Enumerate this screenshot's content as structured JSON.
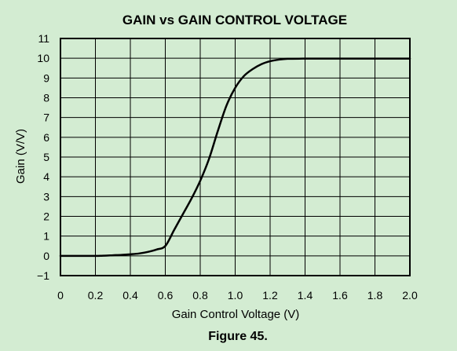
{
  "chart_data": {
    "type": "line",
    "title": "GAIN vs GAIN CONTROL VOLTAGE",
    "xlabel": "Gain Control Voltage (V)",
    "ylabel": "Gain (V/V)",
    "xlim": [
      0,
      2.0
    ],
    "ylim": [
      -1,
      11
    ],
    "x_ticks": [
      "0",
      "0.2",
      "0.4",
      "0.6",
      "0.8",
      "1.0",
      "1.2",
      "1.4",
      "1.6",
      "1.8",
      "2.0"
    ],
    "y_ticks": [
      "−1",
      "0",
      "1",
      "2",
      "3",
      "4",
      "5",
      "6",
      "7",
      "8",
      "9",
      "10",
      "11"
    ],
    "grid": true,
    "series": [
      {
        "x": [
          0,
          0.1,
          0.2,
          0.25,
          0.3,
          0.35,
          0.4,
          0.45,
          0.5,
          0.55,
          0.6,
          0.65,
          0.7,
          0.75,
          0.8,
          0.85,
          0.9,
          0.95,
          1.0,
          1.05,
          1.1,
          1.15,
          1.2,
          1.25,
          1.3,
          1.4,
          1.6,
          1.8,
          2.0
        ],
        "y": [
          0,
          0,
          0,
          0.01,
          0.03,
          0.05,
          0.08,
          0.12,
          0.2,
          0.32,
          0.5,
          1.3,
          2.1,
          2.9,
          3.8,
          4.9,
          6.3,
          7.6,
          8.5,
          9.1,
          9.45,
          9.7,
          9.85,
          9.93,
          9.97,
          9.98,
          9.98,
          9.98,
          9.98
        ],
        "color": "#000000"
      }
    ]
  },
  "caption": "Figure 45.",
  "colors": {
    "background": "#d3ecd2",
    "grid": "#000000",
    "line": "#000000"
  }
}
